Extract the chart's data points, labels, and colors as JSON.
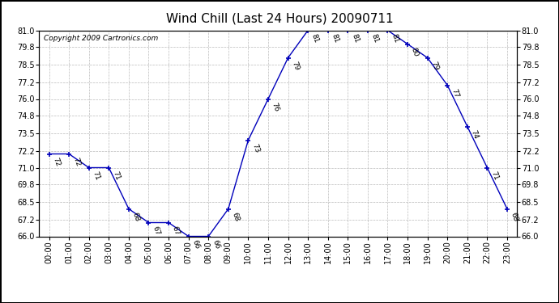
{
  "title": "Wind Chill (Last 24 Hours) 20090711",
  "copyright": "Copyright 2009 Cartronics.com",
  "hours": [
    0,
    1,
    2,
    3,
    4,
    5,
    6,
    7,
    8,
    9,
    10,
    11,
    12,
    13,
    14,
    15,
    16,
    17,
    18,
    19,
    20,
    21,
    22,
    23
  ],
  "values": [
    72,
    72,
    71,
    71,
    68,
    67,
    67,
    66,
    66,
    68,
    73,
    76,
    79,
    81,
    81,
    81,
    81,
    81,
    80,
    79,
    77,
    74,
    71,
    68
  ],
  "xlabels": [
    "00:00",
    "01:00",
    "02:00",
    "03:00",
    "04:00",
    "05:00",
    "06:00",
    "07:00",
    "08:00",
    "09:00",
    "10:00",
    "11:00",
    "12:00",
    "13:00",
    "14:00",
    "15:00",
    "16:00",
    "17:00",
    "18:00",
    "19:00",
    "20:00",
    "21:00",
    "22:00",
    "23:00"
  ],
  "ylim": [
    66.0,
    81.0
  ],
  "yticks": [
    66.0,
    67.2,
    68.5,
    69.8,
    71.0,
    72.2,
    73.5,
    74.8,
    76.0,
    77.2,
    78.5,
    79.8,
    81.0
  ],
  "ytick_labels": [
    "66.0",
    "67.2",
    "68.5",
    "69.8",
    "71.0",
    "72.2",
    "73.5",
    "74.8",
    "76.0",
    "77.2",
    "78.5",
    "79.8",
    "81.0"
  ],
  "line_color": "#0000bb",
  "marker_color": "#0000bb",
  "bg_color": "#ffffff",
  "grid_color": "#bbbbbb",
  "title_fontsize": 11,
  "tick_fontsize": 7,
  "annotation_fontsize": 6.5,
  "copyright_fontsize": 6.5
}
